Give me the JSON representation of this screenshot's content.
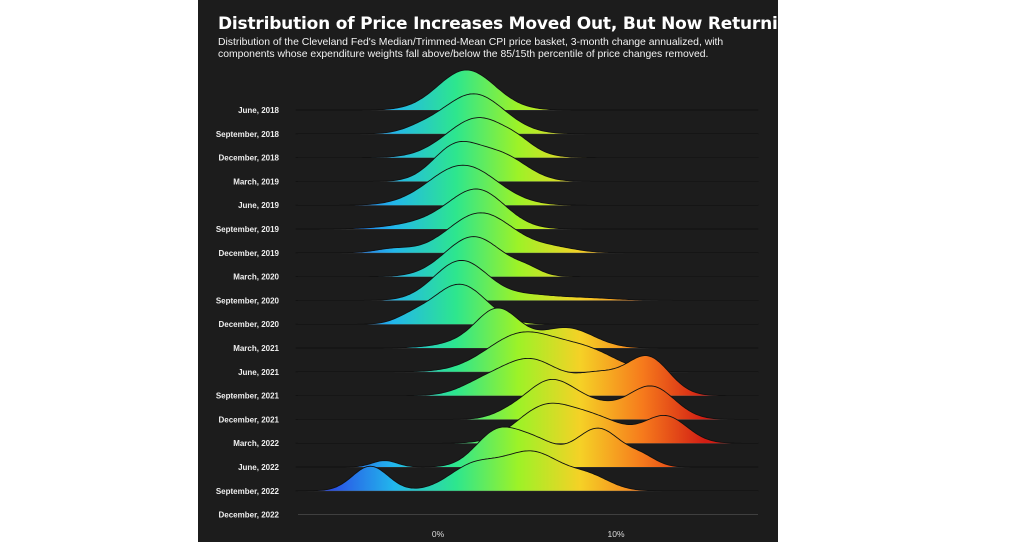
{
  "title": "Distribution of Price Increases Moved Out, But Now Returning Back",
  "subtitle": "Distribution of the Cleveland Fed's Median/Trimmed-Mean CPI price basket, 3-month change annualized, with components whose expenditure weights fall above/below the 85/15th percentile of price changes removed.",
  "chart_data": {
    "type": "ridgeline",
    "x_unit": "annualized % change",
    "xlim": [
      -8,
      18
    ],
    "x_ticks": [
      {
        "value": 0,
        "label": "0%"
      },
      {
        "value": 10,
        "label": "10%"
      }
    ],
    "color_scale": {
      "min": -6,
      "max": 15,
      "colors": [
        "#2a4fe6",
        "#22b6ec",
        "#2de68e",
        "#9df227",
        "#f5d126",
        "#f67a1c",
        "#d21d14"
      ]
    },
    "series": [
      {
        "label": "June, 2018",
        "components": [
          {
            "mean": 1.6,
            "sd": 1.6,
            "amp": 1.0
          }
        ]
      },
      {
        "label": "September, 2018",
        "components": [
          {
            "mean": 2.0,
            "sd": 1.7,
            "amp": 1.0
          },
          {
            "mean": -1.0,
            "sd": 1.0,
            "amp": 0.1
          }
        ]
      },
      {
        "label": "December, 2018",
        "components": [
          {
            "mean": 2.3,
            "sd": 1.8,
            "amp": 1.0
          },
          {
            "mean": 4.6,
            "sd": 0.8,
            "amp": 0.12
          }
        ]
      },
      {
        "label": "March, 2019",
        "components": [
          {
            "mean": 1.0,
            "sd": 1.3,
            "amp": 0.9
          },
          {
            "mean": 3.6,
            "sd": 1.4,
            "amp": 0.65
          }
        ]
      },
      {
        "label": "June, 2019",
        "components": [
          {
            "mean": 1.4,
            "sd": 1.9,
            "amp": 1.0
          }
        ]
      },
      {
        "label": "September, 2019",
        "components": [
          {
            "mean": 2.3,
            "sd": 1.5,
            "amp": 1.0
          },
          {
            "mean": 0.5,
            "sd": 2.2,
            "amp": 0.3
          }
        ]
      },
      {
        "label": "December, 2019",
        "components": [
          {
            "mean": 2.4,
            "sd": 1.8,
            "amp": 1.0
          },
          {
            "mean": 6.5,
            "sd": 1.3,
            "amp": 0.12
          },
          {
            "mean": -2.5,
            "sd": 1.0,
            "amp": 0.1
          }
        ]
      },
      {
        "label": "March, 2020",
        "components": [
          {
            "mean": 2.0,
            "sd": 1.6,
            "amp": 1.0
          },
          {
            "mean": 5.0,
            "sd": 0.8,
            "amp": 0.15
          }
        ]
      },
      {
        "label": "September, 2020",
        "components": [
          {
            "mean": 1.3,
            "sd": 1.5,
            "amp": 1.0
          },
          {
            "mean": 8.0,
            "sd": 1.8,
            "amp": 0.07
          },
          {
            "mean": 5.0,
            "sd": 1.4,
            "amp": 0.12
          }
        ]
      },
      {
        "label": "December, 2020",
        "components": [
          {
            "mean": 1.2,
            "sd": 1.5,
            "amp": 1.0
          },
          {
            "mean": -1.5,
            "sd": 0.9,
            "amp": 0.15
          }
        ]
      },
      {
        "label": "March, 2021",
        "components": [
          {
            "mean": 3.4,
            "sd": 1.2,
            "amp": 1.0
          },
          {
            "mean": 7.2,
            "sd": 1.5,
            "amp": 0.55
          },
          {
            "mean": 1.5,
            "sd": 1.5,
            "amp": 0.15
          }
        ]
      },
      {
        "label": "June, 2021",
        "components": [
          {
            "mean": 4.8,
            "sd": 2.0,
            "amp": 0.85
          },
          {
            "mean": 8.5,
            "sd": 1.6,
            "amp": 0.4
          }
        ]
      },
      {
        "label": "September, 2021",
        "components": [
          {
            "mean": 5.2,
            "sd": 1.6,
            "amp": 0.8
          },
          {
            "mean": 9.0,
            "sd": 1.3,
            "amp": 0.45
          },
          {
            "mean": 11.8,
            "sd": 1.2,
            "amp": 0.85
          },
          {
            "mean": 2.5,
            "sd": 1.3,
            "amp": 0.25
          }
        ]
      },
      {
        "label": "December, 2021",
        "components": [
          {
            "mean": 6.2,
            "sd": 1.3,
            "amp": 0.9
          },
          {
            "mean": 8.5,
            "sd": 1.5,
            "amp": 0.4
          },
          {
            "mean": 12.0,
            "sd": 1.3,
            "amp": 0.85
          },
          {
            "mean": 4.0,
            "sd": 1.0,
            "amp": 0.15
          }
        ]
      },
      {
        "label": "March, 2022",
        "components": [
          {
            "mean": 6.0,
            "sd": 1.6,
            "amp": 0.8
          },
          {
            "mean": 9.0,
            "sd": 1.6,
            "amp": 0.5
          },
          {
            "mean": 12.8,
            "sd": 1.2,
            "amp": 0.6
          }
        ]
      },
      {
        "label": "June, 2022",
        "components": [
          {
            "mean": 3.3,
            "sd": 1.2,
            "amp": 0.8
          },
          {
            "mean": 5.5,
            "sd": 1.2,
            "amp": 0.55
          },
          {
            "mean": 9.0,
            "sd": 1.3,
            "amp": 0.9
          },
          {
            "mean": 11.5,
            "sd": 0.8,
            "amp": 0.2
          },
          {
            "mean": -3.0,
            "sd": 0.7,
            "amp": 0.15
          }
        ]
      },
      {
        "label": "September, 2022",
        "components": [
          {
            "mean": 5.3,
            "sd": 1.6,
            "amp": 0.85
          },
          {
            "mean": 2.0,
            "sd": 1.4,
            "amp": 0.55
          },
          {
            "mean": 8.5,
            "sd": 1.2,
            "amp": 0.3
          },
          {
            "mean": -3.8,
            "sd": 1.0,
            "amp": 0.55
          }
        ]
      },
      {
        "label": "December, 2022",
        "components": []
      }
    ]
  }
}
